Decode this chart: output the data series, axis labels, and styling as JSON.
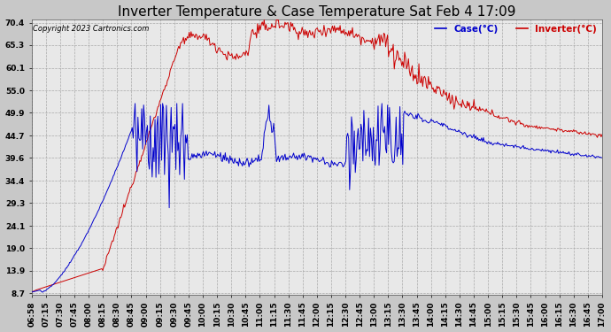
{
  "title": "Inverter Temperature & Case Temperature Sat Feb 4 17:09",
  "copyright": "Copyright 2023 Cartronics.com",
  "legend_case": "Case(°C)",
  "legend_inverter": "Inverter(°C)",
  "yticks": [
    8.7,
    13.9,
    19.0,
    24.1,
    29.3,
    34.4,
    39.6,
    44.7,
    49.9,
    55.0,
    60.1,
    65.3,
    70.4
  ],
  "ymin": 8.7,
  "ymax": 70.4,
  "background_color": "#c8c8c8",
  "plot_background": "#e8e8e8",
  "grid_color": "#aaaaaa",
  "title_fontsize": 11,
  "tick_fontsize": 6.5,
  "inverter_color": "#cc0000",
  "case_color": "#0000cc",
  "xtick_labels": [
    "06:58",
    "07:15",
    "07:30",
    "07:45",
    "08:00",
    "08:15",
    "08:30",
    "08:45",
    "09:00",
    "09:15",
    "09:30",
    "09:45",
    "10:00",
    "10:15",
    "10:30",
    "10:45",
    "11:00",
    "11:15",
    "11:30",
    "11:45",
    "12:00",
    "12:15",
    "12:30",
    "12:45",
    "13:00",
    "13:15",
    "13:30",
    "13:45",
    "14:00",
    "14:15",
    "14:30",
    "14:45",
    "15:00",
    "15:15",
    "15:30",
    "15:45",
    "16:00",
    "16:15",
    "16:30",
    "16:45",
    "17:00"
  ]
}
